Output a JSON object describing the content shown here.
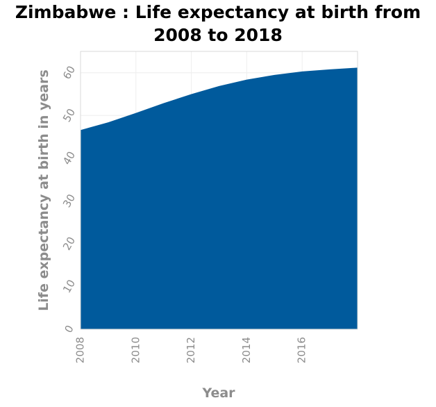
{
  "chart_data": {
    "type": "area",
    "title_line1": "Zimbabwe : Life expectancy at birth from",
    "title_line2": "2008 to 2018",
    "xlabel": "Year",
    "ylabel": "Life expectancy at birth in years",
    "x": [
      2008,
      2009,
      2010,
      2011,
      2012,
      2013,
      2014,
      2015,
      2016,
      2017,
      2018
    ],
    "values": [
      46.6,
      48.4,
      50.6,
      52.9,
      55.0,
      56.9,
      58.4,
      59.5,
      60.3,
      60.8,
      61.2
    ],
    "xlim": [
      2008,
      2018
    ],
    "ylim": [
      0,
      65
    ],
    "xticks": [
      2008,
      2010,
      2012,
      2014,
      2016
    ],
    "xtick_labels": [
      "2008",
      "2010",
      "2012",
      "2014",
      "2016"
    ],
    "yticks": [
      0,
      10,
      20,
      30,
      40,
      50,
      60
    ],
    "ytick_labels": [
      "0",
      "10",
      "20",
      "30",
      "40",
      "50",
      "60"
    ],
    "grid": true,
    "fill_color": "#005a9c"
  }
}
